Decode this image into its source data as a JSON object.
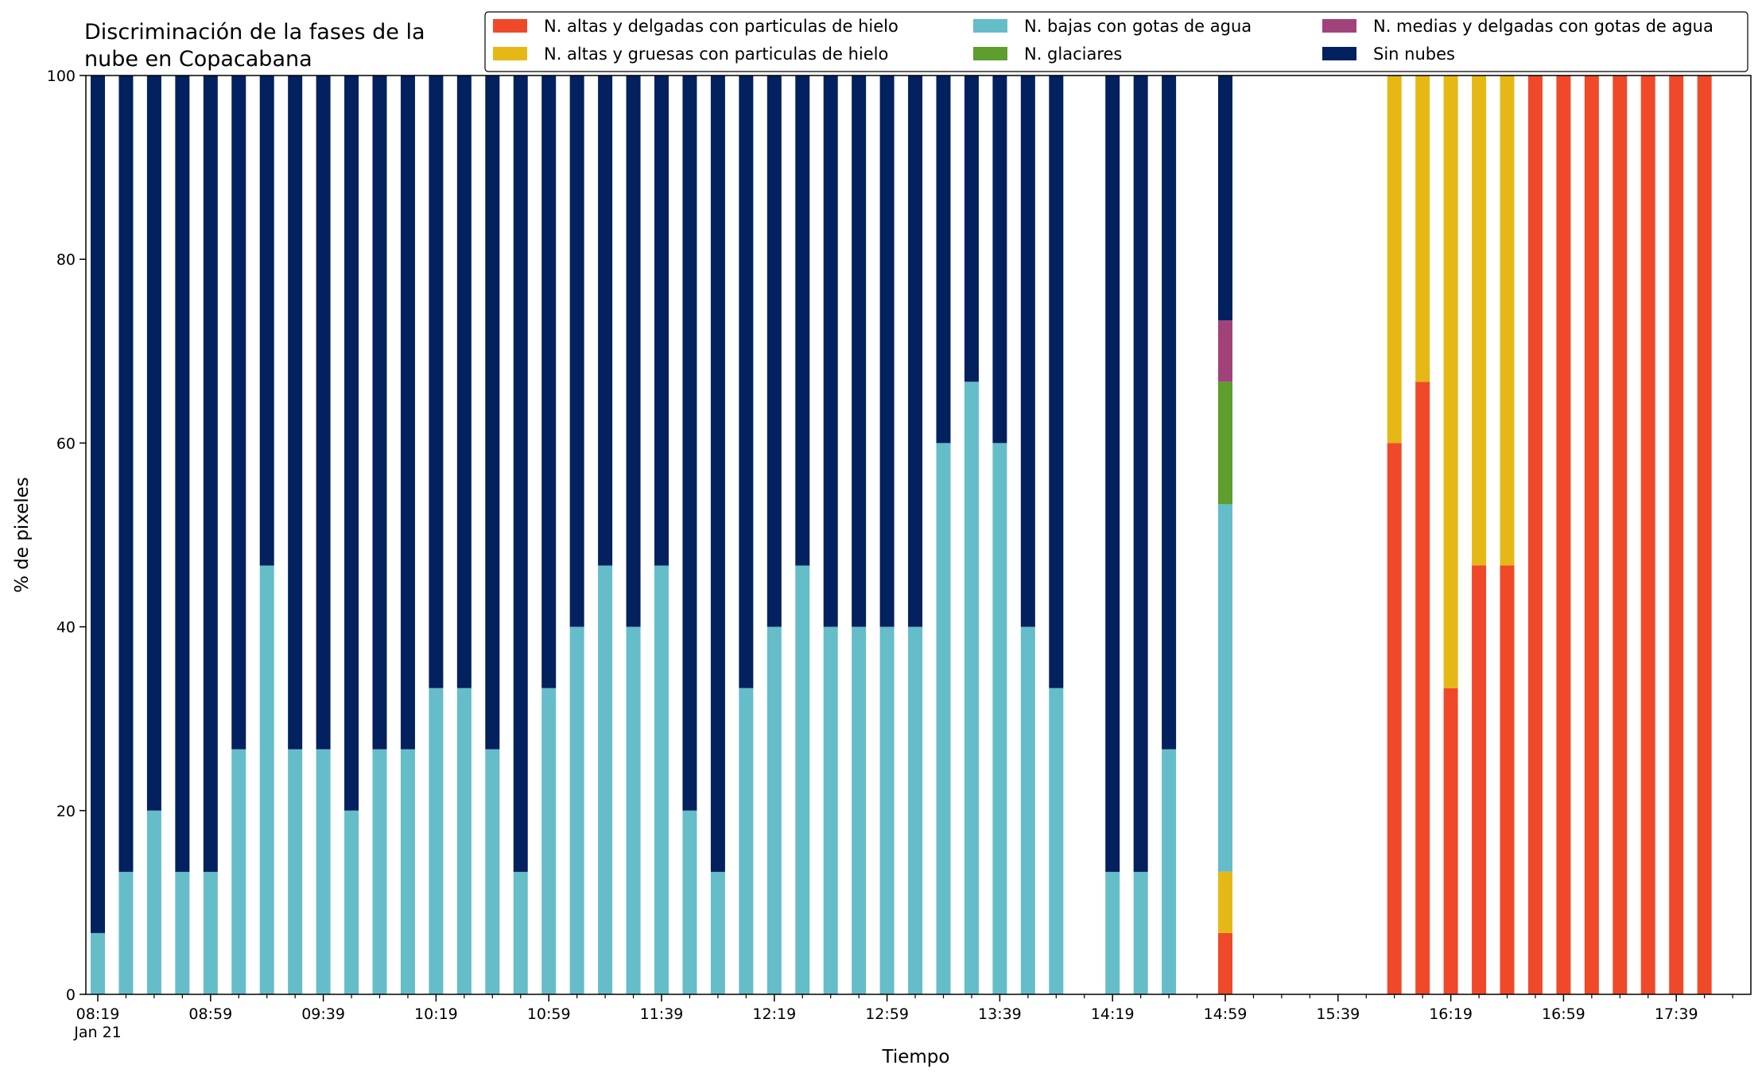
{
  "chart_data": {
    "type": "bar",
    "stacked": true,
    "title": "Discriminación de la fases de la\nnube en Copacabana",
    "xlabel": "Tiempo",
    "ylabel": "% de pixeles",
    "ylim": [
      0,
      100
    ],
    "yticks": [
      0,
      20,
      40,
      60,
      80,
      100
    ],
    "grid": false,
    "legend_position": "top-right",
    "x_start": "2021-01-21 08:19",
    "x_interval_minutes": 10,
    "xtick_labels": [
      "08:19",
      "08:59",
      "09:39",
      "10:19",
      "10:59",
      "11:39",
      "12:19",
      "12:59",
      "13:39",
      "14:19",
      "14:59",
      "15:39",
      "16:19",
      "16:59",
      "17:39"
    ],
    "xtick_sublabel": "Jan 21",
    "categories": [
      "08:19",
      "08:29",
      "08:39",
      "08:49",
      "08:59",
      "09:09",
      "09:19",
      "09:29",
      "09:39",
      "09:49",
      "09:59",
      "10:09",
      "10:19",
      "10:29",
      "10:39",
      "10:49",
      "10:59",
      "11:09",
      "11:19",
      "11:29",
      "11:39",
      "11:49",
      "11:59",
      "12:09",
      "12:19",
      "12:29",
      "12:39",
      "12:49",
      "12:59",
      "13:09",
      "13:19",
      "13:29",
      "13:39",
      "13:49",
      "13:59",
      "14:09",
      "14:19",
      "14:29",
      "14:39",
      "14:49",
      "14:59",
      "15:09",
      "15:19",
      "15:29",
      "15:39",
      "15:49",
      "15:59",
      "16:09",
      "16:19",
      "16:29",
      "16:39",
      "16:49",
      "16:59",
      "17:09",
      "17:19",
      "17:29",
      "17:39",
      "17:49"
    ],
    "series": [
      {
        "name": "N. altas y delgadas con particulas de hielo",
        "color": "#f0492a",
        "values": [
          0,
          0,
          0,
          0,
          0,
          0,
          0,
          0,
          0,
          0,
          0,
          0,
          0,
          0,
          0,
          0,
          0,
          0,
          0,
          0,
          0,
          0,
          0,
          0,
          0,
          0,
          0,
          0,
          0,
          0,
          0,
          0,
          0,
          0,
          0,
          0,
          0,
          0,
          0,
          0,
          6.67,
          0,
          0,
          0,
          0,
          0,
          60,
          66.67,
          33.33,
          46.67,
          46.67,
          100,
          100,
          100,
          100,
          100,
          100,
          100
        ]
      },
      {
        "name": "N. altas y gruesas con particulas de hielo",
        "color": "#e6b815",
        "values": [
          0,
          0,
          0,
          0,
          0,
          0,
          0,
          0,
          0,
          0,
          0,
          0,
          0,
          0,
          0,
          0,
          0,
          0,
          0,
          0,
          0,
          0,
          0,
          0,
          0,
          0,
          0,
          0,
          0,
          0,
          0,
          0,
          0,
          0,
          0,
          0,
          0,
          0,
          0,
          0,
          6.67,
          0,
          0,
          0,
          0,
          0,
          40,
          33.33,
          66.67,
          53.33,
          53.33,
          0,
          0,
          0,
          0,
          0,
          0,
          0
        ]
      },
      {
        "name": "N. bajas con gotas de agua",
        "color": "#65bdc9",
        "values": [
          6.67,
          13.33,
          20,
          13.33,
          13.33,
          26.67,
          46.67,
          26.67,
          26.67,
          20,
          26.67,
          26.67,
          33.33,
          33.33,
          26.67,
          13.33,
          33.33,
          40,
          46.67,
          40,
          46.67,
          20,
          13.33,
          33.33,
          40,
          46.67,
          40,
          40,
          40,
          40,
          60,
          66.67,
          60,
          40,
          33.33,
          0,
          13.33,
          13.33,
          26.67,
          0,
          40,
          0,
          0,
          0,
          0,
          0,
          0,
          0,
          0,
          0,
          0,
          0,
          0,
          0,
          0,
          0,
          0,
          0
        ]
      },
      {
        "name": "N. glaciares",
        "color": "#5d9e2d",
        "values": [
          0,
          0,
          0,
          0,
          0,
          0,
          0,
          0,
          0,
          0,
          0,
          0,
          0,
          0,
          0,
          0,
          0,
          0,
          0,
          0,
          0,
          0,
          0,
          0,
          0,
          0,
          0,
          0,
          0,
          0,
          0,
          0,
          0,
          0,
          0,
          0,
          0,
          0,
          0,
          0,
          13.33,
          0,
          0,
          0,
          0,
          0,
          0,
          0,
          0,
          0,
          0,
          0,
          0,
          0,
          0,
          0,
          0,
          0
        ]
      },
      {
        "name": "N. medias y delgadas con gotas de agua",
        "color": "#a2427a",
        "values": [
          0,
          0,
          0,
          0,
          0,
          0,
          0,
          0,
          0,
          0,
          0,
          0,
          0,
          0,
          0,
          0,
          0,
          0,
          0,
          0,
          0,
          0,
          0,
          0,
          0,
          0,
          0,
          0,
          0,
          0,
          0,
          0,
          0,
          0,
          0,
          0,
          0,
          0,
          0,
          0,
          6.67,
          0,
          0,
          0,
          0,
          0,
          0,
          0,
          0,
          0,
          0,
          0,
          0,
          0,
          0,
          0,
          0,
          0
        ]
      },
      {
        "name": "Sin nubes",
        "color": "#03205f",
        "values": [
          93.33,
          86.67,
          80,
          86.67,
          86.67,
          73.33,
          53.33,
          73.33,
          73.33,
          80,
          73.33,
          73.33,
          66.67,
          66.67,
          73.33,
          86.67,
          66.67,
          60,
          53.33,
          60,
          53.33,
          80,
          86.67,
          66.67,
          60,
          53.33,
          60,
          60,
          60,
          60,
          40,
          33.33,
          40,
          60,
          66.67,
          0,
          86.67,
          86.67,
          73.33,
          0,
          26.67,
          0,
          0,
          0,
          0,
          0,
          0,
          0,
          0,
          0,
          0,
          0,
          0,
          0,
          0,
          0,
          0,
          0
        ]
      }
    ],
    "legend_order": [
      0,
      1,
      2,
      3,
      4,
      5
    ]
  }
}
